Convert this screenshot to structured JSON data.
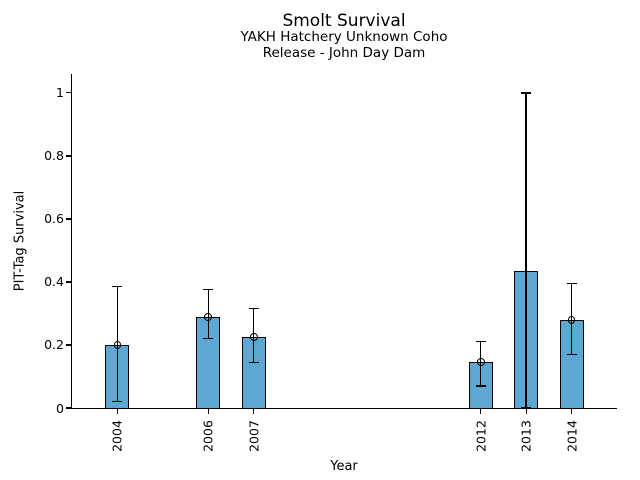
{
  "figure": {
    "background": "#ffffff",
    "title": "Smolt Survival",
    "subtitle_line1": "YAKH Hatchery Unknown Coho",
    "subtitle_line2": "Release - John Day Dam"
  },
  "chart_data": {
    "type": "bar",
    "title": "Smolt Survival",
    "subtitle": "YAKH Hatchery Unknown Coho — Release - John Day Dam",
    "xlabel": "Year",
    "ylabel": "PIT-Tag Survival",
    "grid": false,
    "legend": "none",
    "spines": [
      "left",
      "bottom"
    ],
    "bar_color": "#5CA8D2",
    "bar_edge_color": "#000000",
    "error_bar_color": "#000000",
    "marker_style": "open-circle",
    "xlim": [
      2003,
      2015
    ],
    "ylim": [
      0,
      1.06
    ],
    "ytick_values": [
      0,
      0.2,
      0.4,
      0.6,
      0.8,
      1
    ],
    "ytick_labels": [
      "0",
      "0.2",
      "0.4",
      "0.6",
      "0.8",
      "1"
    ],
    "categories": [
      "2004",
      "2006",
      "2007",
      "2012",
      "2013",
      "2014"
    ],
    "points": [
      {
        "year": 2004,
        "label": "2004",
        "value": 0.2,
        "err_lo": 0.02,
        "err_hi": 0.385,
        "marker": true
      },
      {
        "year": 2006,
        "label": "2006",
        "value": 0.29,
        "err_lo": 0.22,
        "err_hi": 0.375,
        "marker": true
      },
      {
        "year": 2007,
        "label": "2007",
        "value": 0.225,
        "err_lo": 0.145,
        "err_hi": 0.315,
        "marker": true
      },
      {
        "year": 2012,
        "label": "2012",
        "value": 0.145,
        "err_lo": 0.07,
        "err_hi": 0.21,
        "marker": true
      },
      {
        "year": 2013,
        "label": "2013",
        "value": 0.435,
        "err_lo": 0.0,
        "err_hi": 1.0,
        "marker": false
      },
      {
        "year": 2014,
        "label": "2014",
        "value": 0.28,
        "err_lo": 0.17,
        "err_hi": 0.395,
        "marker": true
      }
    ]
  }
}
